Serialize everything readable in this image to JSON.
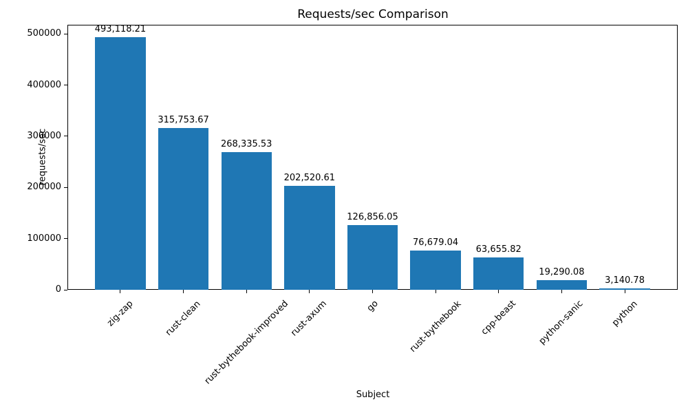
{
  "chart_data": {
    "type": "bar",
    "title": "Requests/sec Comparison",
    "xlabel": "Subject",
    "ylabel": "requests/sec",
    "categories": [
      "zig-zap",
      "rust-clean",
      "rust-bythebook-improved",
      "rust-axum",
      "go",
      "rust-bythebook",
      "cpp-beast",
      "python-sanic",
      "python"
    ],
    "values": [
      493118.21,
      315753.67,
      268335.53,
      202520.61,
      126856.05,
      76679.04,
      63655.82,
      19290.08,
      3140.78
    ],
    "bar_labels": [
      "493,118.21",
      "315,753.67",
      "268,335.53",
      "202,520.61",
      "126,856.05",
      "76,679.04",
      "63,655.82",
      "19,290.08",
      "3,140.78"
    ],
    "yticks": [
      0,
      100000,
      200000,
      300000,
      400000,
      500000
    ],
    "ytick_labels": [
      "0",
      "100000",
      "200000",
      "300000",
      "400000",
      "500000"
    ],
    "ylim": [
      0,
      517774
    ],
    "xtick_rotation_deg": 45,
    "grid": false,
    "bar_color": "#1f77b4",
    "text_color": "#000000",
    "background_color": "#ffffff"
  }
}
